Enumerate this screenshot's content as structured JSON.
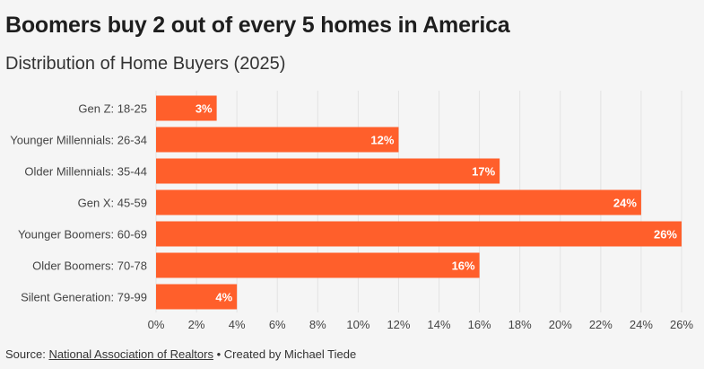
{
  "header": {
    "title": "Boomers buy 2 out of every 5 homes in America",
    "subtitle": "Distribution of Home Buyers (2025)"
  },
  "footer": {
    "source_prefix": "Source:",
    "source_link": "National Association of Realtors",
    "separator": "•",
    "credit": "Created by Michael Tiede"
  },
  "colors": {
    "bar": "#ff5f2b",
    "bar_label": "#ffffff",
    "grid": "#e3e3e3",
    "text": "#444444"
  },
  "chart_data": {
    "type": "bar",
    "orientation": "horizontal",
    "title": "Boomers buy 2 out of every 5 homes in America",
    "subtitle": "Distribution of Home Buyers (2025)",
    "xlabel": "",
    "ylabel": "",
    "categories": [
      "Gen Z: 18-25",
      "Younger Millennials: 26-34",
      "Older Millennials: 35-44",
      "Gen X: 45-59",
      "Younger Boomers: 60-69",
      "Older Boomers: 70-78",
      "Silent Generation: 79-99"
    ],
    "values": [
      3,
      12,
      17,
      24,
      26,
      16,
      4
    ],
    "value_labels": [
      "3%",
      "12%",
      "17%",
      "24%",
      "26%",
      "16%",
      "4%"
    ],
    "xlim": [
      0,
      26
    ],
    "xticks": [
      0,
      2,
      4,
      6,
      8,
      10,
      12,
      14,
      16,
      18,
      20,
      22,
      24,
      26
    ],
    "xtick_labels": [
      "0%",
      "2%",
      "4%",
      "6%",
      "8%",
      "10%",
      "12%",
      "14%",
      "16%",
      "18%",
      "20%",
      "22%",
      "24%",
      "26%"
    ],
    "grid": true,
    "legend": "none"
  }
}
